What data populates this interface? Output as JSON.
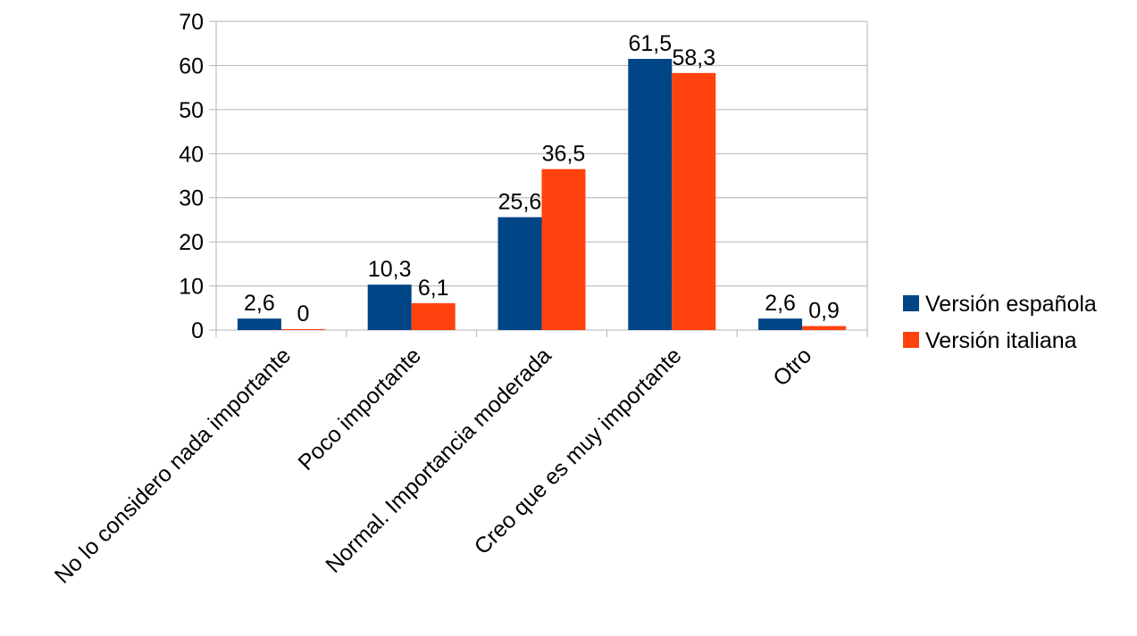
{
  "chart_data": {
    "type": "bar",
    "categories": [
      "No lo considero nada importante",
      "Poco importante",
      "Normal. Importancia moderada",
      "Creo que es muy importante",
      "Otro"
    ],
    "series": [
      {
        "name": "Versión española",
        "color": "#004586",
        "values": [
          2.6,
          10.3,
          25.6,
          61.5,
          2.6
        ],
        "labels": [
          "2,6",
          "10,3",
          "25,6",
          "61,5",
          "2,6"
        ]
      },
      {
        "name": "Versión italiana",
        "color": "#ff420e",
        "values": [
          0,
          6.1,
          36.5,
          58.3,
          0.9
        ],
        "labels": [
          "0",
          "6,1",
          "36,5",
          "58,3",
          "0,9"
        ]
      }
    ],
    "ylim": [
      0,
      70
    ],
    "yticks": [
      0,
      10,
      20,
      30,
      40,
      50,
      60,
      70
    ],
    "grid": true,
    "legend_position": "right"
  }
}
